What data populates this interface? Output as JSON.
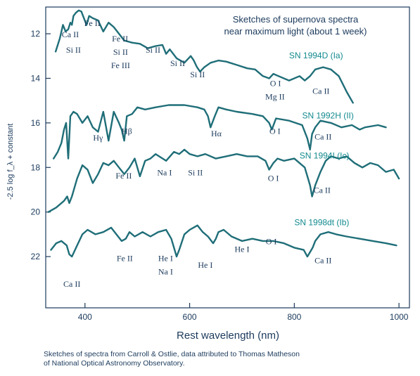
{
  "chart_data": {
    "type": "line",
    "title": [
      "Sketches of supernova spectra",
      "near maximum light (about 1 week)"
    ],
    "xlabel": "Rest wavelength (nm)",
    "ylabel": "-2.5 log f_λ + constant",
    "xlim": [
      325,
      1020
    ],
    "ylim": [
      24.3,
      10.8
    ],
    "y_inverted": true,
    "grid": false,
    "x_ticks": [
      400,
      600,
      800,
      1000
    ],
    "y_ticks": [
      12,
      14,
      16,
      18,
      20,
      22
    ],
    "colors": {
      "axis": "#1b3a5c",
      "series": "#1f6e78",
      "label": "#138a8f"
    },
    "series": [
      {
        "name": "SN 1994D (Ia)",
        "x": [
          344,
          352,
          358,
          363,
          368,
          372,
          375,
          378,
          383,
          388,
          393,
          398,
          403,
          408,
          415,
          425,
          435,
          445,
          455,
          465,
          475,
          490,
          505,
          520,
          535,
          548,
          555,
          562,
          575,
          590,
          602,
          608,
          614,
          620,
          628,
          640,
          655,
          670,
          690,
          710,
          725,
          740,
          752,
          760,
          770,
          790,
          810,
          820,
          830,
          840,
          855,
          870,
          885,
          900,
          912
        ],
        "y": [
          12.8,
          12.2,
          11.6,
          11.9,
          11.8,
          11.5,
          11.6,
          11.2,
          11.05,
          10.95,
          11.0,
          11.3,
          11.6,
          11.2,
          11.3,
          11.4,
          11.9,
          11.5,
          11.7,
          12.0,
          12.3,
          12.4,
          12.45,
          12.65,
          12.55,
          12.5,
          12.9,
          12.7,
          13.1,
          13.3,
          13.0,
          13.2,
          13.5,
          13.7,
          13.5,
          13.3,
          13.2,
          13.25,
          13.4,
          13.55,
          13.6,
          13.9,
          14.0,
          13.8,
          13.9,
          14.1,
          13.9,
          14.1,
          13.9,
          13.6,
          13.5,
          13.6,
          13.9,
          14.6,
          15.1
        ]
      },
      {
        "name": "SN 1992H (II)",
        "x": [
          340,
          348,
          355,
          360,
          364,
          368,
          372,
          378,
          385,
          395,
          405,
          415,
          425,
          435,
          445,
          455,
          465,
          470,
          475,
          480,
          490,
          500,
          515,
          535,
          560,
          590,
          615,
          628,
          635,
          640,
          648,
          655,
          670,
          690,
          720,
          740,
          752,
          757,
          765,
          790,
          815,
          825,
          830,
          834,
          840,
          850,
          870,
          890,
          910,
          925,
          935,
          960,
          975
        ],
        "y": [
          17.6,
          17.3,
          16.9,
          16.3,
          16.0,
          17.6,
          15.7,
          15.5,
          15.6,
          16.0,
          15.7,
          16.2,
          16.4,
          15.5,
          16.8,
          15.5,
          16.0,
          16.3,
          16.8,
          15.7,
          15.6,
          15.3,
          15.4,
          15.3,
          15.2,
          15.2,
          15.3,
          15.4,
          15.7,
          16.2,
          15.7,
          15.3,
          15.4,
          15.5,
          15.6,
          15.7,
          16.0,
          16.3,
          15.8,
          15.9,
          16.1,
          16.7,
          17.2,
          16.5,
          16.2,
          15.9,
          16.0,
          16.2,
          16.1,
          16.3,
          16.2,
          16.1,
          16.2
        ]
      },
      {
        "name": "SN 1994I (Ic)",
        "x": [
          330,
          345,
          360,
          366,
          370,
          375,
          385,
          395,
          405,
          415,
          425,
          435,
          445,
          455,
          465,
          475,
          485,
          495,
          505,
          515,
          525,
          535,
          555,
          570,
          580,
          590,
          600,
          615,
          630,
          650,
          670,
          690,
          710,
          730,
          745,
          752,
          760,
          768,
          780,
          800,
          820,
          830,
          834,
          840,
          850,
          860,
          870,
          885,
          900,
          915,
          930,
          945,
          960,
          975,
          990,
          1000
        ],
        "y": [
          20.0,
          19.8,
          19.5,
          19.3,
          19.6,
          19.3,
          18.5,
          17.9,
          18.1,
          18.7,
          18.3,
          17.8,
          17.9,
          17.7,
          18.0,
          18.3,
          18.0,
          17.6,
          18.4,
          17.7,
          17.6,
          17.4,
          17.7,
          17.3,
          17.4,
          17.2,
          17.4,
          17.5,
          17.4,
          17.6,
          17.5,
          17.4,
          17.5,
          17.5,
          17.7,
          18.1,
          17.8,
          17.6,
          17.7,
          17.6,
          18.0,
          18.8,
          19.3,
          18.8,
          18.2,
          17.7,
          17.5,
          17.6,
          17.5,
          17.8,
          18.0,
          17.8,
          17.9,
          18.2,
          18.1,
          18.5
        ]
      },
      {
        "name": "SN 1998dt (Ib)",
        "x": [
          335,
          345,
          355,
          365,
          370,
          375,
          385,
          395,
          405,
          420,
          435,
          450,
          460,
          470,
          478,
          485,
          495,
          510,
          525,
          540,
          555,
          565,
          570,
          575,
          580,
          590,
          600,
          615,
          625,
          635,
          645,
          650,
          655,
          665,
          680,
          700,
          720,
          740,
          760,
          780,
          800,
          818,
          825,
          830,
          835,
          840,
          850,
          865,
          880,
          900,
          925,
          950,
          975,
          995
        ],
        "y": [
          21.7,
          21.4,
          21.3,
          21.5,
          21.9,
          22.0,
          21.5,
          21.0,
          20.8,
          21.0,
          20.9,
          20.7,
          21.0,
          21.3,
          21.2,
          20.9,
          21.1,
          20.9,
          21.1,
          20.9,
          20.8,
          21.2,
          21.6,
          22.0,
          21.7,
          21.0,
          20.8,
          20.6,
          20.9,
          21.1,
          21.4,
          21.2,
          20.9,
          20.8,
          21.1,
          21.3,
          21.2,
          21.3,
          21.3,
          21.4,
          21.6,
          21.7,
          22.0,
          21.8,
          21.6,
          21.3,
          21.0,
          20.9,
          21.0,
          21.1,
          21.2,
          21.3,
          21.4,
          21.5
        ]
      }
    ],
    "series_label_positions": [
      {
        "x": 790,
        "y": 13.1
      },
      {
        "x": 815,
        "y": 15.8
      },
      {
        "x": 810,
        "y": 17.6
      },
      {
        "x": 800,
        "y": 20.6
      }
    ],
    "annotations": [
      {
        "text": "Ca II",
        "x": 372,
        "y": 12.15
      },
      {
        "text": "Si II",
        "x": 378,
        "y": 12.85
      },
      {
        "text": "Fe II",
        "x": 414,
        "y": 11.65
      },
      {
        "text": "Fe II",
        "x": 467,
        "y": 12.35
      },
      {
        "text": "Si II",
        "x": 468,
        "y": 12.95
      },
      {
        "text": "Fe III",
        "x": 468,
        "y": 13.55
      },
      {
        "text": "Si II",
        "x": 530,
        "y": 12.85
      },
      {
        "text": "Si II",
        "x": 577,
        "y": 13.45
      },
      {
        "text": "Si II",
        "x": 615,
        "y": 13.95
      },
      {
        "text": "O I",
        "x": 764,
        "y": 14.35
      },
      {
        "text": "Mg II",
        "x": 763,
        "y": 14.95
      },
      {
        "text": "Ca II",
        "x": 851,
        "y": 14.7
      },
      {
        "text": "Hγ",
        "x": 425,
        "y": 16.8
      },
      {
        "text": "Hβ",
        "x": 480,
        "y": 16.5
      },
      {
        "text": "Hα",
        "x": 651,
        "y": 16.6
      },
      {
        "text": "O I",
        "x": 763,
        "y": 16.5
      },
      {
        "text": "Ca II",
        "x": 855,
        "y": 16.75
      },
      {
        "text": "Fe II",
        "x": 474,
        "y": 18.5
      },
      {
        "text": "Na I",
        "x": 552,
        "y": 18.35
      },
      {
        "text": "Si II",
        "x": 611,
        "y": 18.35
      },
      {
        "text": "O I",
        "x": 760,
        "y": 18.6
      },
      {
        "text": "Ca II",
        "x": 853,
        "y": 19.15
      },
      {
        "text": "Fe II",
        "x": 476,
        "y": 22.2
      },
      {
        "text": "He I",
        "x": 554,
        "y": 22.2
      },
      {
        "text": "Na I",
        "x": 554,
        "y": 22.8
      },
      {
        "text": "He I",
        "x": 630,
        "y": 22.5
      },
      {
        "text": "He I",
        "x": 700,
        "y": 21.8
      },
      {
        "text": "O I",
        "x": 756,
        "y": 21.45
      },
      {
        "text": "Ca II",
        "x": 855,
        "y": 22.3
      },
      {
        "text": "Ca II",
        "x": 375,
        "y": 23.35
      }
    ]
  },
  "caption_lines": [
    "Sketches of spectra from Carroll & Ostlie, data attributed to Thomas Matheson",
    "of National Optical Astronomy Observatory."
  ]
}
